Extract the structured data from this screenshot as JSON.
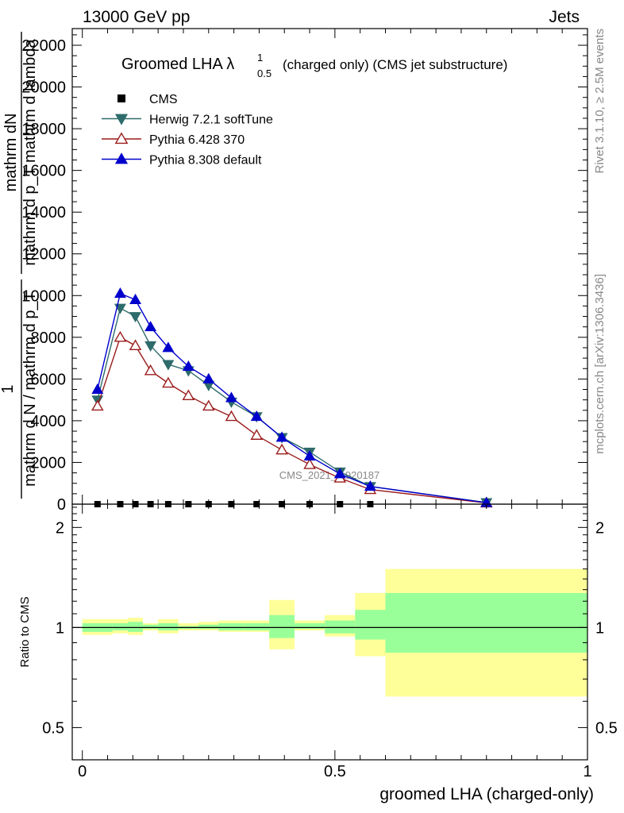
{
  "header": {
    "left": "13000 GeV pp",
    "right": "Jets"
  },
  "side_text": {
    "rivet": "Rivet 3.1.10, ≥ 2.5M events",
    "mcplots": "mcplots.cern.ch [arXiv:1306.3436]"
  },
  "watermark": "CMS_2021_I1920187",
  "chart_data": [
    {
      "type": "line",
      "title": "Groomed LHA λ¹₀.₅ (charged only) (CMS jet substructure)",
      "title_main": "Groomed LHA λ",
      "title_sup": "1",
      "title_sub": "0.5",
      "title_rest": "(charged only) (CMS jet substructure)",
      "ylabel_lines": [
        "mathrm dN",
        "mathrm d p_T mathrm d lambda",
        "1",
        "mathrm d N / mathrm d p_T"
      ],
      "ylim": [
        0,
        22800
      ],
      "xlim": [
        -0.02,
        1.0
      ],
      "yticks": [
        0,
        2000,
        4000,
        6000,
        8000,
        10000,
        12000,
        14000,
        16000,
        18000,
        20000,
        22000
      ],
      "ytick_labels": [
        "0",
        "2000",
        "4000",
        "6000",
        "8000",
        "10000",
        "12000",
        "14000",
        "16000",
        "18000",
        "20000",
        "22000"
      ],
      "legend_position": "top-left",
      "x": [
        0.03,
        0.075,
        0.105,
        0.135,
        0.17,
        0.21,
        0.25,
        0.295,
        0.345,
        0.395,
        0.45,
        0.51,
        0.57,
        0.8
      ],
      "series": [
        {
          "name": "CMS",
          "marker": "square",
          "color": "#000000",
          "values": [
            0,
            0,
            0,
            0,
            0,
            0,
            0,
            0,
            0,
            0,
            0,
            0,
            0,
            null
          ]
        },
        {
          "name": "Herwig 7.2.1 softTune",
          "marker": "triangle-down",
          "color": "#2e6b6b",
          "values": [
            5000,
            9400,
            9000,
            7600,
            6700,
            6400,
            5700,
            4900,
            4200,
            3200,
            2500,
            1550,
            850,
            80
          ]
        },
        {
          "name": "Pythia 6.428 370",
          "marker": "triangle-up-open",
          "color": "#9b1c1c",
          "values": [
            4700,
            8000,
            7600,
            6400,
            5800,
            5200,
            4700,
            4200,
            3300,
            2600,
            1900,
            1250,
            700,
            60
          ]
        },
        {
          "name": "Pythia 8.308 default",
          "marker": "triangle-up",
          "color": "#0000cc",
          "values": [
            5500,
            10100,
            9800,
            8500,
            7500,
            6600,
            6000,
            5100,
            4200,
            3200,
            2300,
            1450,
            850,
            70
          ]
        }
      ]
    },
    {
      "type": "area",
      "ylabel": "Ratio to CMS",
      "xlabel": "groomed LHA (charged-only)",
      "scale": "log",
      "ylim": [
        0.4,
        2.35
      ],
      "yticks": [
        0.5,
        1,
        2
      ],
      "ytick_labels": [
        "0.5",
        "1",
        "2"
      ],
      "xticks": [
        0,
        0.5,
        1
      ],
      "xtick_labels": [
        "0",
        "0.5",
        "1"
      ],
      "reference_line": 1,
      "colors": {
        "inner": "#99ff99",
        "outer": "#ffff99"
      },
      "bins": [
        {
          "x0": 0.0,
          "x1": 0.06,
          "inner": [
            0.97,
            1.03
          ],
          "outer": [
            0.95,
            1.06
          ]
        },
        {
          "x0": 0.06,
          "x1": 0.09,
          "inner": [
            0.98,
            1.03
          ],
          "outer": [
            0.96,
            1.06
          ]
        },
        {
          "x0": 0.09,
          "x1": 0.12,
          "inner": [
            0.97,
            1.04
          ],
          "outer": [
            0.95,
            1.07
          ]
        },
        {
          "x0": 0.12,
          "x1": 0.15,
          "inner": [
            0.99,
            1.02
          ],
          "outer": [
            0.98,
            1.03
          ]
        },
        {
          "x0": 0.15,
          "x1": 0.19,
          "inner": [
            0.98,
            1.03
          ],
          "outer": [
            0.96,
            1.06
          ]
        },
        {
          "x0": 0.19,
          "x1": 0.23,
          "inner": [
            0.99,
            1.01
          ],
          "outer": [
            0.98,
            1.03
          ]
        },
        {
          "x0": 0.23,
          "x1": 0.27,
          "inner": [
            0.99,
            1.02
          ],
          "outer": [
            0.98,
            1.04
          ]
        },
        {
          "x0": 0.27,
          "x1": 0.32,
          "inner": [
            0.98,
            1.03
          ],
          "outer": [
            0.97,
            1.05
          ]
        },
        {
          "x0": 0.32,
          "x1": 0.37,
          "inner": [
            0.98,
            1.03
          ],
          "outer": [
            0.97,
            1.05
          ]
        },
        {
          "x0": 0.37,
          "x1": 0.42,
          "inner": [
            0.93,
            1.09
          ],
          "outer": [
            0.86,
            1.21
          ]
        },
        {
          "x0": 0.42,
          "x1": 0.48,
          "inner": [
            0.99,
            1.03
          ],
          "outer": [
            0.98,
            1.05
          ]
        },
        {
          "x0": 0.48,
          "x1": 0.54,
          "inner": [
            0.96,
            1.05
          ],
          "outer": [
            0.94,
            1.09
          ]
        },
        {
          "x0": 0.54,
          "x1": 0.6,
          "inner": [
            0.92,
            1.13
          ],
          "outer": [
            0.82,
            1.27
          ]
        },
        {
          "x0": 0.6,
          "x1": 1.0,
          "inner": [
            0.84,
            1.27
          ],
          "outer": [
            0.62,
            1.5
          ]
        }
      ]
    }
  ]
}
